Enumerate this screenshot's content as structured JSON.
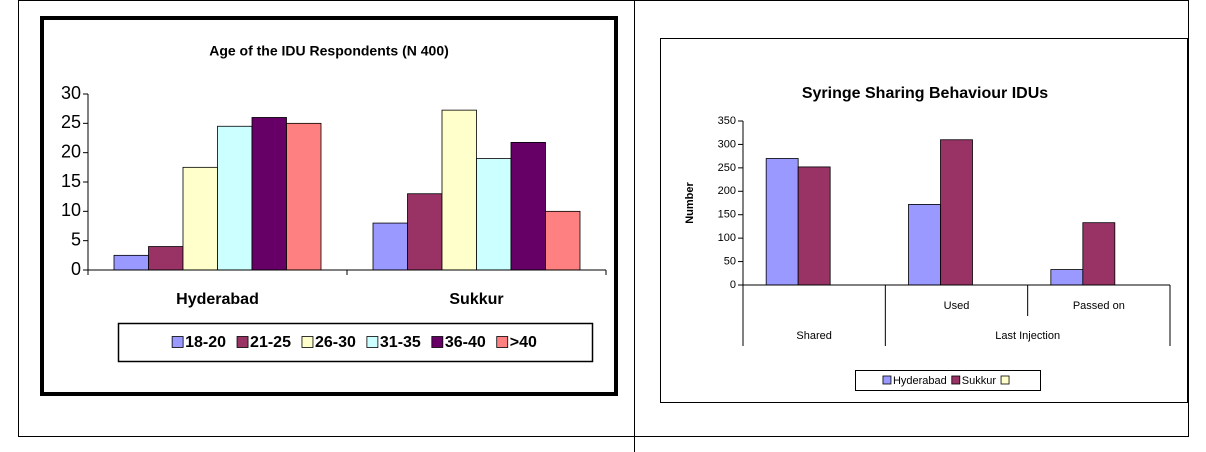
{
  "chart_data": [
    {
      "type": "bar",
      "title": "Age of the IDU Respondents (N 400)",
      "categories": [
        "Hyderabad",
        "Sukkur"
      ],
      "series": [
        {
          "name": "18-20",
          "color": "#9999ff",
          "values": [
            2.5,
            8
          ]
        },
        {
          "name": "21-25",
          "color": "#993366",
          "values": [
            4,
            13
          ]
        },
        {
          "name": "26-30",
          "color": "#ffffcc",
          "values": [
            17.5,
            27.25
          ]
        },
        {
          "name": "31-35",
          "color": "#ccffff",
          "values": [
            24.5,
            19
          ]
        },
        {
          "name": "36-40",
          "color": "#660066",
          "values": [
            26,
            21.75
          ]
        },
        {
          "name": ">40",
          "color": "#ff8080",
          "values": [
            25,
            10
          ]
        }
      ],
      "ylim": [
        0,
        30
      ],
      "yticks": [
        0,
        5,
        10,
        15,
        20,
        25,
        30
      ],
      "legend": "bottom"
    },
    {
      "type": "bar",
      "title": "Syringe Sharing Behaviour IDUs",
      "y_label": "Number",
      "categories": [
        "Shared",
        "Used",
        "Passed on"
      ],
      "category_groups": [
        {
          "label": "Last Injection",
          "categories": [
            "Used",
            "Passed on"
          ]
        }
      ],
      "series": [
        {
          "name": "Hyderabad",
          "color": "#9999ff",
          "values": [
            270,
            172,
            33
          ]
        },
        {
          "name": "Sukkur",
          "color": "#993366",
          "values": [
            252,
            310,
            133
          ]
        },
        {
          "color": "#ffffcc",
          "values": [
            null,
            null,
            null
          ]
        }
      ],
      "ylim": [
        0,
        350
      ],
      "yticks": [
        0,
        50,
        100,
        150,
        200,
        250,
        300,
        350
      ],
      "legend": "bottom"
    }
  ]
}
